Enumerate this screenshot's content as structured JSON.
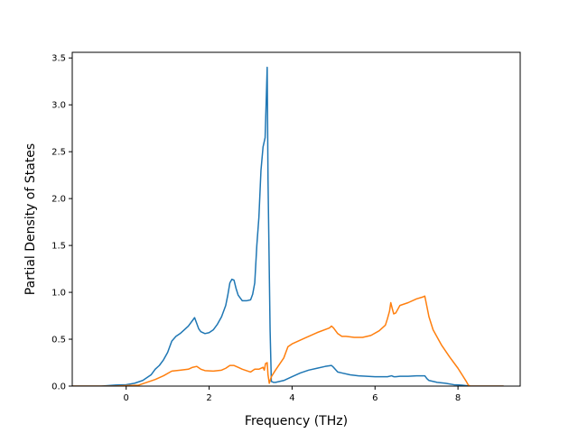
{
  "chart_data": {
    "type": "line",
    "title": "",
    "xlabel": "Frequency (THz)",
    "ylabel": "Partial Density of States",
    "xlim": [
      -1.3,
      9.5
    ],
    "ylim": [
      0,
      3.56
    ],
    "x_ticks": [
      0,
      2,
      4,
      6,
      8
    ],
    "x_tick_labels": [
      "0",
      "2",
      "4",
      "6",
      "8"
    ],
    "y_ticks": [
      0.0,
      0.5,
      1.0,
      1.5,
      2.0,
      2.5,
      3.0,
      3.5
    ],
    "y_tick_labels": [
      "0.0",
      "0.5",
      "1.0",
      "1.5",
      "2.0",
      "2.5",
      "3.0",
      "3.5"
    ],
    "grid": false,
    "legend": "none",
    "series": [
      {
        "color": "#1f77b4",
        "x": [
          -1.3,
          -0.6,
          -0.3,
          0.0,
          0.2,
          0.4,
          0.5,
          0.6,
          0.7,
          0.8,
          0.9,
          1.0,
          1.1,
          1.2,
          1.3,
          1.4,
          1.5,
          1.6,
          1.65,
          1.7,
          1.75,
          1.8,
          1.9,
          2.0,
          2.1,
          2.2,
          2.3,
          2.4,
          2.45,
          2.5,
          2.55,
          2.6,
          2.65,
          2.7,
          2.8,
          2.9,
          3.0,
          3.05,
          3.1,
          3.15,
          3.2,
          3.25,
          3.3,
          3.35,
          3.4,
          3.42,
          3.47,
          3.5,
          3.55,
          3.6,
          3.8,
          4.0,
          4.2,
          4.4,
          4.6,
          4.8,
          4.95,
          5.0,
          5.1,
          5.2,
          5.4,
          5.6,
          5.8,
          6.0,
          6.2,
          6.3,
          6.4,
          6.45,
          6.5,
          6.6,
          6.8,
          7.0,
          7.2,
          7.25,
          7.3,
          7.5,
          7.7,
          7.9,
          8.1,
          8.3,
          8.5,
          9.1
        ],
        "y": [
          0.0,
          0.0,
          0.01,
          0.015,
          0.03,
          0.06,
          0.09,
          0.12,
          0.18,
          0.22,
          0.28,
          0.36,
          0.48,
          0.53,
          0.56,
          0.6,
          0.64,
          0.7,
          0.73,
          0.67,
          0.61,
          0.58,
          0.56,
          0.57,
          0.6,
          0.66,
          0.74,
          0.86,
          0.97,
          1.1,
          1.14,
          1.13,
          1.04,
          0.97,
          0.91,
          0.91,
          0.92,
          0.98,
          1.1,
          1.5,
          1.8,
          2.3,
          2.55,
          2.65,
          3.4,
          2.2,
          0.6,
          0.05,
          0.04,
          0.04,
          0.06,
          0.1,
          0.14,
          0.17,
          0.19,
          0.21,
          0.22,
          0.2,
          0.15,
          0.14,
          0.12,
          0.11,
          0.105,
          0.1,
          0.1,
          0.1,
          0.11,
          0.1,
          0.1,
          0.105,
          0.105,
          0.11,
          0.11,
          0.08,
          0.06,
          0.04,
          0.03,
          0.015,
          0.01,
          0.0,
          0.0,
          0.0
        ]
      },
      {
        "color": "#ff7f0e",
        "x": [
          -1.3,
          -0.3,
          0.0,
          0.3,
          0.5,
          0.7,
          0.9,
          1.1,
          1.3,
          1.5,
          1.6,
          1.7,
          1.8,
          1.9,
          2.1,
          2.3,
          2.4,
          2.5,
          2.6,
          2.7,
          2.8,
          3.0,
          3.1,
          3.2,
          3.3,
          3.33,
          3.36,
          3.4,
          3.42,
          3.45,
          3.5,
          3.6,
          3.8,
          3.9,
          4.0,
          4.3,
          4.6,
          4.9,
          4.95,
          5.0,
          5.1,
          5.2,
          5.3,
          5.5,
          5.7,
          5.9,
          6.1,
          6.25,
          6.3,
          6.35,
          6.38,
          6.42,
          6.45,
          6.5,
          6.6,
          6.8,
          7.0,
          7.15,
          7.2,
          7.25,
          7.3,
          7.4,
          7.6,
          7.8,
          8.0,
          8.1,
          8.2,
          8.25,
          8.3,
          8.5,
          9.1
        ],
        "y": [
          0.0,
          0.0,
          0.005,
          0.01,
          0.04,
          0.07,
          0.11,
          0.16,
          0.17,
          0.18,
          0.2,
          0.21,
          0.18,
          0.165,
          0.16,
          0.17,
          0.19,
          0.22,
          0.22,
          0.2,
          0.18,
          0.15,
          0.18,
          0.18,
          0.2,
          0.17,
          0.24,
          0.25,
          0.12,
          0.03,
          0.1,
          0.17,
          0.3,
          0.42,
          0.45,
          0.51,
          0.57,
          0.62,
          0.64,
          0.62,
          0.56,
          0.53,
          0.53,
          0.52,
          0.52,
          0.54,
          0.59,
          0.65,
          0.72,
          0.8,
          0.89,
          0.82,
          0.77,
          0.78,
          0.86,
          0.89,
          0.93,
          0.95,
          0.96,
          0.85,
          0.74,
          0.6,
          0.44,
          0.31,
          0.19,
          0.12,
          0.05,
          0.01,
          0.0,
          0.0,
          0.0
        ]
      }
    ]
  }
}
